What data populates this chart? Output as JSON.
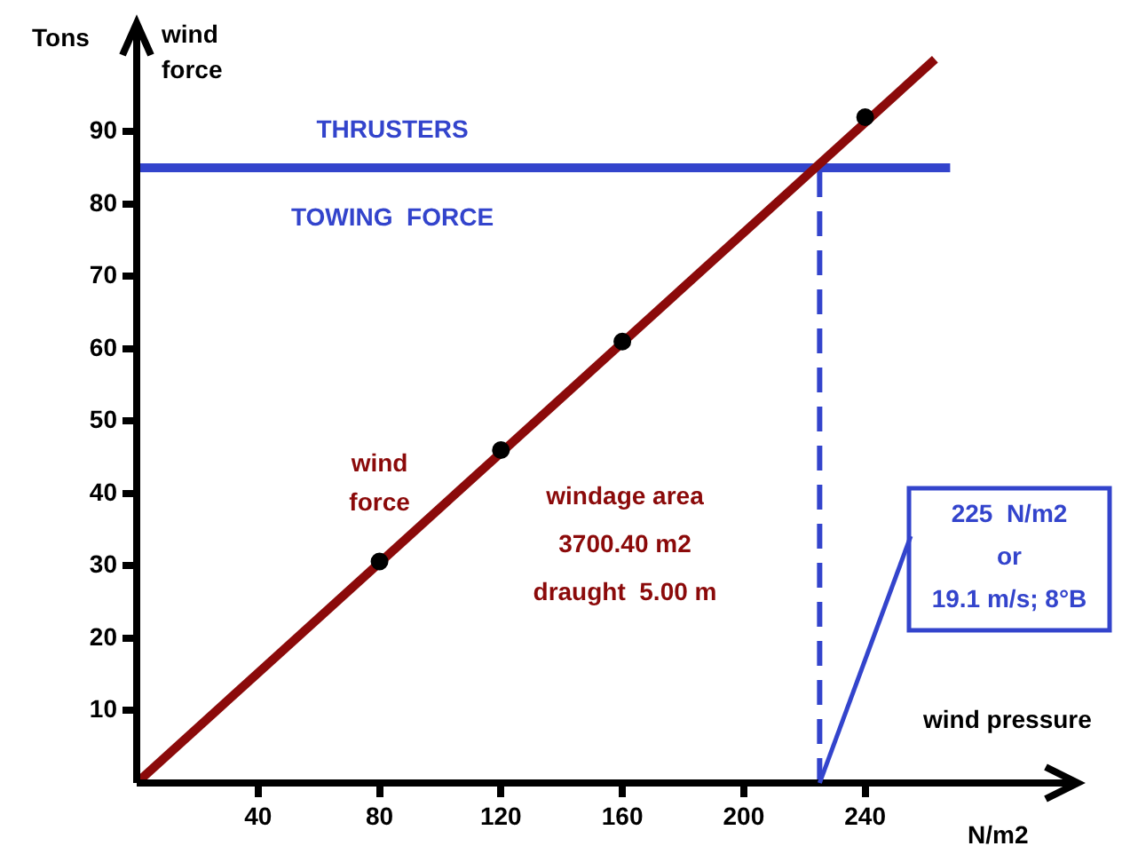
{
  "chart_data": {
    "type": "line",
    "ylabel": "Tons",
    "xlabel": "N/m2",
    "xlim": [
      0,
      310
    ],
    "ylim": [
      0,
      105
    ],
    "xticks": [
      40,
      80,
      120,
      160,
      200,
      240
    ],
    "yticks": [
      10,
      20,
      30,
      40,
      50,
      60,
      70,
      80,
      90
    ],
    "grid": false,
    "legend": false,
    "marker": "none",
    "series": [
      {
        "name": "wind force",
        "color": "#8b0a0a",
        "x": [
          0,
          263
        ],
        "values": [
          0,
          100
        ]
      },
      {
        "type": "scatter",
        "color": "#000000",
        "x": [
          80,
          120,
          160,
          240
        ],
        "values": [
          30.6,
          46,
          61,
          92
        ],
        "marker": "circle"
      },
      {
        "type": "line",
        "color": "#3344cc",
        "x": [
          225,
          225
        ],
        "values": [
          0,
          85
        ],
        "line_style": "dashed"
      }
    ],
    "ref_lines": [
      {
        "axis": "y",
        "value": 85,
        "color": "#3344cc",
        "label": "THRUSTERS"
      }
    ],
    "annotations": [
      "wind force",
      "wind pressure",
      "windage area\n3700.40 m2\ndraught  5.00 m",
      "TOWING  FORCE",
      {
        "text": "225  N/m2\nor\n19.1 m/s; 8°B",
        "x": 225,
        "y": 0
      }
    ]
  }
}
